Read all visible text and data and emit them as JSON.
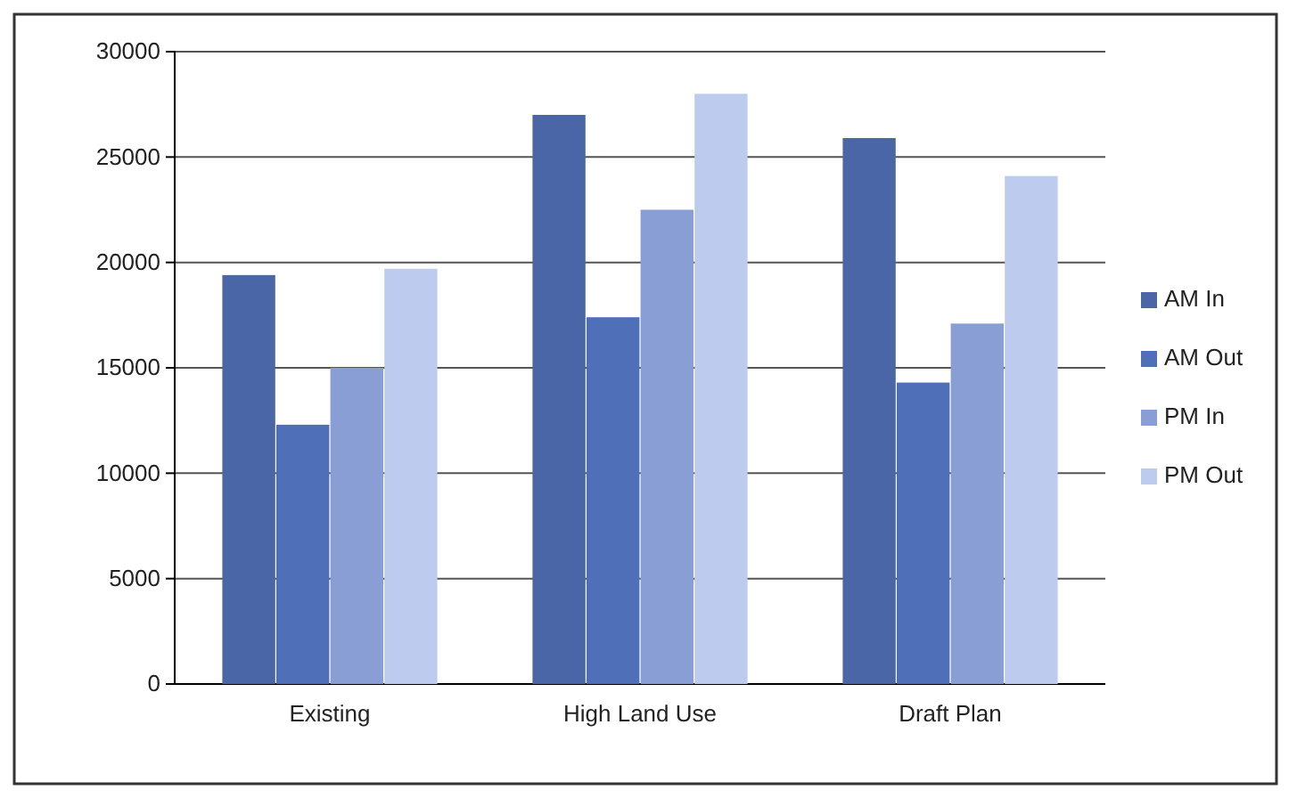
{
  "chart_data": {
    "type": "bar",
    "categories": [
      "Existing",
      "High Land Use",
      "Draft Plan"
    ],
    "series": [
      {
        "name": "AM In",
        "color": "#4a66a6",
        "values": [
          19400,
          27000,
          25900
        ]
      },
      {
        "name": "AM Out",
        "color": "#4f70b8",
        "values": [
          12300,
          17400,
          14300
        ]
      },
      {
        "name": "PM In",
        "color": "#8a9ed6",
        "values": [
          15000,
          22500,
          17100
        ]
      },
      {
        "name": "PM Out",
        "color": "#bdcbee",
        "values": [
          19700,
          28000,
          24100
        ]
      }
    ],
    "ylim": [
      0,
      30000
    ],
    "yticks": [
      0,
      5000,
      10000,
      15000,
      20000,
      25000,
      30000
    ],
    "grid": "y",
    "legend": "right"
  }
}
